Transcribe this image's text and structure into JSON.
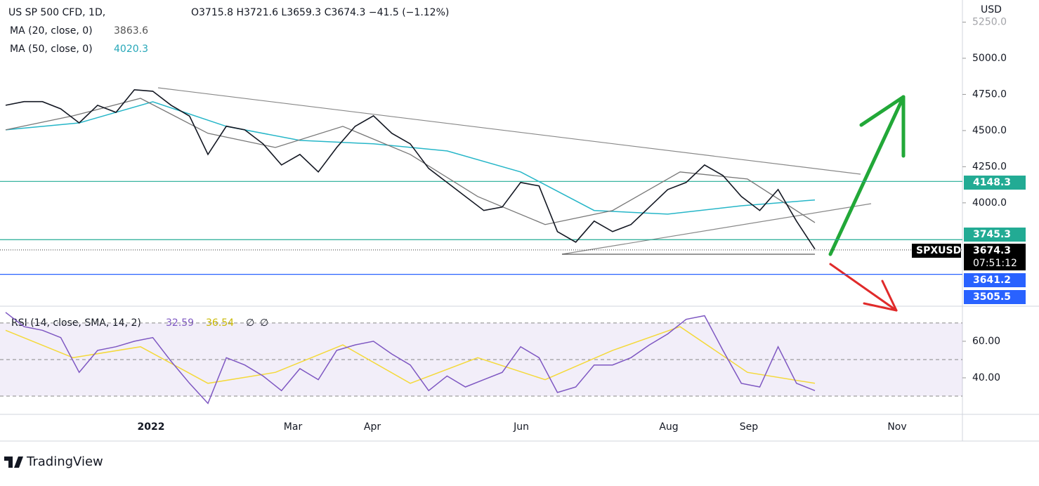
{
  "header": {
    "symbol": "US SP 500 CFD, 1D,",
    "ohlc": "O3715.8  H3721.6  L3659.3  C3674.3  −41.5 (−1.12%)",
    "ma20_label": "MA (20, close, 0)",
    "ma20_value": "3863.6",
    "ma50_label": "MA (50, close, 0)",
    "ma50_value": "4020.3"
  },
  "price_pane": {
    "currency": "USD",
    "ylim": [
      3290,
      5403
    ],
    "yticks": [
      {
        "value": 4000,
        "label": "4000.0"
      },
      {
        "value": 4250,
        "label": "4250.0"
      },
      {
        "value": 4500,
        "label": "4500.0"
      },
      {
        "value": 4750,
        "label": "4750.0"
      },
      {
        "value": 5000,
        "label": "5000.0"
      },
      {
        "value": 5250,
        "label": "5250.0"
      }
    ],
    "close": [
      4675,
      4700,
      4700,
      4650,
      4553,
      4675,
      4626,
      4782,
      4772,
      4675,
      4600,
      4335,
      4530,
      4505,
      4408,
      4262,
      4335,
      4214,
      4383,
      4529,
      4602,
      4481,
      4408,
      4238,
      4141,
      4044,
      3947,
      3971,
      4141,
      4117,
      3801,
      3728,
      3874,
      3801,
      3850,
      3971,
      4092,
      4141,
      4262,
      4189,
      4044,
      3947,
      4092,
      3874,
      3680
    ],
    "ma20": [
      4505,
      4602,
      4723,
      4481,
      4383,
      4529,
      4335,
      4044,
      3850,
      3947,
      4214,
      4165,
      3863.6
    ],
    "ma50": [
      4505,
      4553,
      4699,
      4529,
      4432,
      4408,
      4359,
      4214,
      3947,
      3922,
      3980,
      4020.3
    ],
    "levels": [
      {
        "value": 4148.3,
        "color": "#22ab94"
      },
      {
        "value": 3745.3,
        "color": "#22ab94"
      },
      {
        "value": 3505.5,
        "color": "#2962ff"
      }
    ],
    "tags": [
      {
        "value": 4148.3,
        "color": "#22ab94"
      },
      {
        "value": 3745.3,
        "color": "#22ab94"
      },
      {
        "value": 3674.3,
        "color": "#000000",
        "symbol": "SPXUSD",
        "countdown": "07:51:12"
      },
      {
        "value": 3641.2,
        "color": "#2962ff"
      },
      {
        "value": 3505.5,
        "color": "#2962ff"
      }
    ]
  },
  "rsi_pane": {
    "label": "RSI (14, close, SMA, 14, 2)",
    "rsi_value": "32.59",
    "sma_value": "36.54",
    "extra1": "∅",
    "extra2": "∅",
    "ylim": [
      20,
      78.8
    ],
    "yticks": [
      {
        "value": 40,
        "label": "40.00"
      },
      {
        "value": 60,
        "label": "60.00"
      }
    ],
    "bands": [
      30,
      50,
      70
    ],
    "rsi": [
      75.8,
      68,
      66,
      62,
      43,
      55,
      57,
      60,
      62,
      49,
      37,
      26,
      51,
      47,
      41,
      33,
      45,
      39,
      55,
      58,
      60,
      53,
      47,
      33,
      41,
      35,
      39,
      43,
      57,
      51,
      32,
      35,
      47,
      47,
      51,
      58,
      64,
      72,
      74,
      55,
      37,
      35,
      57,
      37,
      33
    ],
    "sma": [
      66,
      51,
      57,
      37,
      43,
      58,
      37,
      51,
      39,
      55,
      68,
      43,
      37
    ]
  },
  "time_axis": [
    "2022",
    "Mar",
    "Apr",
    "Jun",
    "Aug",
    "Sep",
    "Nov"
  ],
  "footer": {
    "brand": "TradingView"
  }
}
